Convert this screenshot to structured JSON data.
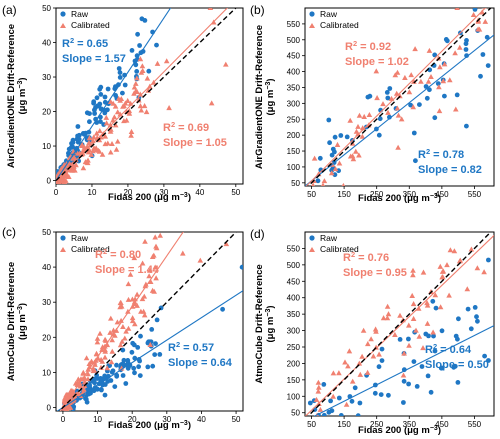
{
  "colors": {
    "raw": "#1f77c4",
    "calibrated": "#f08070",
    "reference_line": "#000000"
  },
  "legend": {
    "raw_label": "Raw",
    "calibrated_label": "Calibrated"
  },
  "chart_data": [
    {
      "type": "scatter",
      "panel_label": "(a)",
      "xlabel": "Fidas 200",
      "ylabel_line1": "AirGradientONE Drift-Reference",
      "xlim": [
        0,
        52
      ],
      "ylim": [
        -1,
        50
      ],
      "xticks": [
        0,
        10,
        20,
        30,
        40,
        50
      ],
      "yticks": [
        0,
        10,
        20,
        30,
        40,
        50
      ],
      "legend_position": "top-left",
      "series": [
        {
          "name": "Raw",
          "slope": 1.57,
          "intercept": 0,
          "r2_label": "R² = 0.65",
          "slope_label": "Slope = 1.57"
        },
        {
          "name": "Calibrated",
          "slope": 1.05,
          "intercept": 0,
          "r2_label": "R² = 0.69",
          "slope_label": "Slope = 1.05"
        }
      ]
    },
    {
      "type": "scatter",
      "panel_label": "(b)",
      "xlabel": "Fidas 200",
      "ylabel_line1": "AirGradientONE Drift-Reference",
      "xlim": [
        30,
        610
      ],
      "ylim": [
        40,
        600
      ],
      "xticks": [
        50,
        150,
        250,
        350,
        450,
        550
      ],
      "yticks": [
        50,
        100,
        150,
        200,
        250,
        300,
        350,
        400,
        450,
        500,
        550
      ],
      "legend_position": "top-left",
      "series": [
        {
          "name": "Raw",
          "slope": 0.82,
          "intercept": 15,
          "r2_label": "R² = 0.78",
          "slope_label": "Slope = 0.82"
        },
        {
          "name": "Calibrated",
          "slope": 1.02,
          "intercept": 5,
          "r2_label": "R² = 0.92",
          "slope_label": "Slope = 1.02"
        }
      ]
    },
    {
      "type": "scatter",
      "panel_label": "(c)",
      "xlabel": "Fidas 200",
      "ylabel_line1": "AtmoCube Drift-Reference",
      "xlim": [
        -2,
        52
      ],
      "ylim": [
        -1,
        50
      ],
      "xticks": [
        0,
        10,
        20,
        30,
        40,
        50
      ],
      "yticks": [
        0,
        10,
        20,
        30,
        40,
        50
      ],
      "legend_position": "top-left",
      "series": [
        {
          "name": "Raw",
          "slope": 0.64,
          "intercept": 0,
          "r2_label": "R² = 0.57",
          "slope_label": "Slope = 0.64"
        },
        {
          "name": "Calibrated",
          "slope": 1.44,
          "intercept": 0,
          "r2_label": "R² = 0.80",
          "slope_label": "Slope = 1.44"
        }
      ]
    },
    {
      "type": "scatter",
      "panel_label": "(d)",
      "xlabel": "Fidas 200",
      "ylabel_line1": "AtmoCube Drift-Reference",
      "xlim": [
        30,
        610
      ],
      "ylim": [
        40,
        600
      ],
      "xticks": [
        50,
        150,
        250,
        350,
        450,
        550
      ],
      "yticks": [
        50,
        100,
        150,
        200,
        250,
        300,
        350,
        400,
        450,
        500,
        550
      ],
      "legend_position": "top-left",
      "series": [
        {
          "name": "Raw",
          "slope": 0.5,
          "intercept": 10,
          "r2_label": "R² = 0.64",
          "slope_label": "Slope = 0.50"
        },
        {
          "name": "Calibrated",
          "slope": 0.95,
          "intercept": 10,
          "r2_label": "R² = 0.76",
          "slope_label": "Slope = 0.95"
        }
      ]
    }
  ]
}
